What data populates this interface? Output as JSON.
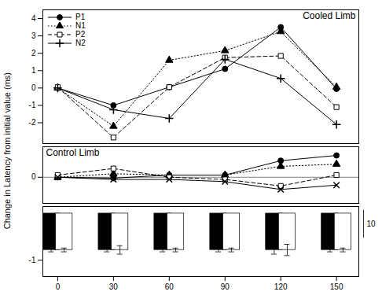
{
  "chart_data": [
    {
      "type": "line",
      "title": "Cooled Limb",
      "ylabel": "Change in Latency from initial value (ms)",
      "x": [
        0,
        30,
        60,
        90,
        120,
        150
      ],
      "xlim": [
        -8,
        162
      ],
      "ylim": [
        -3.2,
        4.5
      ],
      "yticks": [
        -2,
        -1,
        0,
        1,
        2,
        3,
        4
      ],
      "tick_labels": "y",
      "legend": "upper left",
      "series": [
        {
          "name": "P1",
          "color": "black",
          "marker": "circle",
          "line_style": "solid",
          "values": [
            0.0,
            -1.0,
            0.05,
            1.1,
            3.5,
            -0.05
          ]
        },
        {
          "name": "N1",
          "color": "black",
          "marker": "triangle",
          "line_style": "dotted",
          "values": [
            0.0,
            -2.2,
            1.6,
            2.15,
            3.25,
            0.05
          ]
        },
        {
          "name": "P2",
          "color": "black",
          "marker": "square-open",
          "line_style": "dashed",
          "values": [
            0.05,
            -2.85,
            0.05,
            1.75,
            1.85,
            -1.1
          ]
        },
        {
          "name": "N2",
          "color": "black",
          "marker": "plus",
          "line_style": "solid",
          "values": [
            0.0,
            -1.25,
            -1.75,
            1.65,
            0.55,
            -2.1
          ]
        }
      ]
    },
    {
      "type": "line",
      "title": "Control Limb",
      "x": [
        0,
        30,
        60,
        90,
        120,
        150
      ],
      "xlim": [
        -8,
        162
      ],
      "ylim": [
        -0.6,
        0.7
      ],
      "yticks": [
        0
      ],
      "grid": true,
      "tick_labels": "y",
      "series": [
        {
          "color": "black",
          "marker": "circle",
          "line_style": "solid",
          "values": [
            0.0,
            -0.02,
            0.05,
            0.05,
            0.38,
            0.5
          ]
        },
        {
          "color": "black",
          "marker": "triangle",
          "line_style": "dotted",
          "values": [
            0.0,
            0.08,
            0.05,
            0.05,
            0.25,
            0.3
          ]
        },
        {
          "color": "black",
          "marker": "square-open",
          "line_style": "dashed",
          "values": [
            0.05,
            0.2,
            0.0,
            -0.05,
            -0.2,
            0.05
          ]
        },
        {
          "color": "black",
          "marker": "x",
          "line_style": "solid",
          "values": [
            0.0,
            -0.05,
            -0.05,
            -0.1,
            -0.28,
            -0.18
          ]
        }
      ]
    },
    {
      "type": "bar",
      "x": [
        0,
        30,
        60,
        90,
        120,
        150
      ],
      "xlim": [
        -8,
        162
      ],
      "xticks": [
        0,
        30,
        60,
        90,
        120,
        150
      ],
      "ylim": [
        -1.35,
        0.15
      ],
      "yticks": [
        -1
      ],
      "annotation": "10",
      "series": [
        {
          "color": "black",
          "values": [
            -0.78,
            -0.78,
            -0.78,
            -0.78,
            -0.78,
            -0.78
          ],
          "errors": [
            0.04,
            0.04,
            0.04,
            0.04,
            0.09,
            0.04
          ]
        },
        {
          "color": "white",
          "values": [
            -0.78,
            -0.78,
            -0.78,
            -0.78,
            -0.78,
            -0.78
          ],
          "errors": [
            0.04,
            0.09,
            0.04,
            0.04,
            0.12,
            0.04
          ]
        }
      ]
    }
  ]
}
